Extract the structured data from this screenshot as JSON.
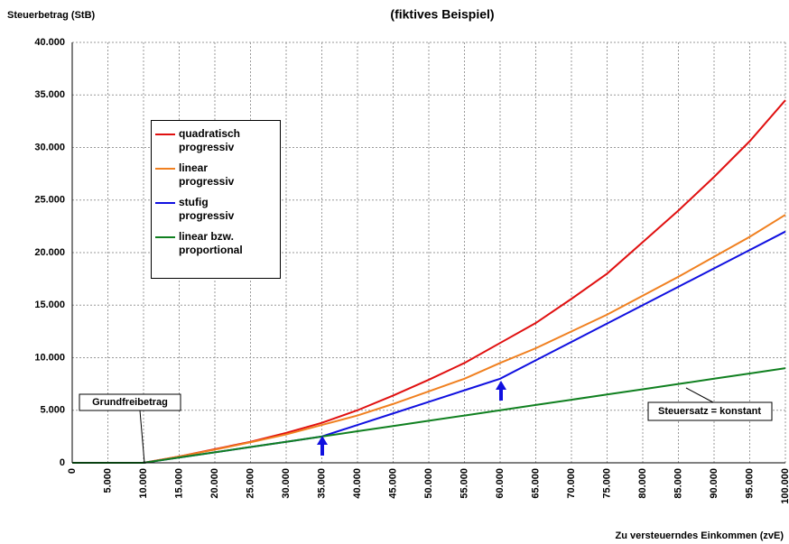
{
  "chart_data": {
    "type": "line",
    "title": "(fiktives Beispiel)",
    "y_label": "Steuerbetrag (StB)",
    "x_label": "Zu versteuerndes Einkommen (zvE)",
    "x": [
      0,
      5000,
      10000,
      15000,
      20000,
      25000,
      30000,
      35000,
      40000,
      45000,
      50000,
      55000,
      60000,
      65000,
      70000,
      75000,
      80000,
      85000,
      90000,
      95000,
      100000
    ],
    "series": [
      {
        "name": "quadratisch progressiv",
        "color": "#e01010",
        "values": [
          0,
          0,
          0,
          600,
          1300,
          2000,
          2850,
          3800,
          5000,
          6400,
          7900,
          9500,
          11400,
          13300,
          15600,
          18000,
          21000,
          24000,
          27200,
          30600,
          34500
        ]
      },
      {
        "name": "linear progressiv",
        "color": "#f08020",
        "values": [
          0,
          0,
          0,
          600,
          1250,
          1950,
          2700,
          3600,
          4500,
          5600,
          6800,
          8000,
          9500,
          10900,
          12500,
          14100,
          15900,
          17700,
          19600,
          21500,
          23600
        ]
      },
      {
        "name": "stufig progressiv",
        "color": "#1010e0",
        "values": [
          0,
          0,
          0,
          500,
          1000,
          1500,
          2000,
          2500,
          3600,
          4700,
          5800,
          6900,
          8000,
          9750,
          11500,
          13250,
          15000,
          16750,
          18500,
          20250,
          22000
        ]
      },
      {
        "name": "linear bzw. proportional",
        "color": "#108020",
        "values": [
          0,
          0,
          0,
          500,
          1000,
          1500,
          2000,
          2500,
          3000,
          3500,
          4000,
          4500,
          5000,
          5500,
          6000,
          6500,
          7000,
          7500,
          8000,
          8500,
          9000
        ]
      }
    ],
    "annotations": [
      "Grundfreibetrag",
      "Steuersatz = konstant"
    ],
    "xlim": [
      0,
      100000
    ],
    "xticks": [
      0,
      {
        "value": 5000,
        "label": "5.000"
      },
      {
        "value": 10000,
        "label": "10.000"
      },
      {
        "value": 15000,
        "label": "15.000"
      },
      {
        "value": 20000,
        "label": "20.000"
      },
      {
        "value": 25000,
        "label": "25.000"
      },
      {
        "value": 30000,
        "label": "30.000"
      },
      {
        "value": 35000,
        "label": "35.000"
      },
      {
        "value": 40000,
        "label": "40.000"
      },
      {
        "value": 45000,
        "label": "45.000"
      },
      {
        "value": 50000,
        "label": "50.000"
      },
      {
        "value": 55000,
        "label": "55.000"
      },
      {
        "value": 60000,
        "label": "60.000"
      },
      {
        "value": 65000,
        "label": "65.000"
      },
      {
        "value": 70000,
        "label": "70.000"
      },
      {
        "value": 75000,
        "label": "75.000"
      },
      {
        "value": 80000,
        "label": "80.000"
      },
      {
        "value": 85000,
        "label": "85.000"
      },
      {
        "value": 90000,
        "label": "90.000"
      },
      {
        "value": 95000,
        "label": "95.000"
      },
      {
        "value": 100000,
        "label": "100.000"
      }
    ],
    "ylim": [
      0,
      40000
    ],
    "yticks": [
      0,
      {
        "value": 5000,
        "label": "5.000"
      },
      {
        "value": 10000,
        "label": "10.000"
      },
      {
        "value": 15000,
        "label": "15.000"
      },
      {
        "value": 20000,
        "label": "20.000"
      },
      {
        "value": 25000,
        "label": "25.000"
      },
      {
        "value": 30000,
        "label": "30.000"
      },
      {
        "value": 35000,
        "label": "35.000"
      },
      {
        "value": 40000,
        "label": "40.000"
      }
    ],
    "grid": true
  }
}
